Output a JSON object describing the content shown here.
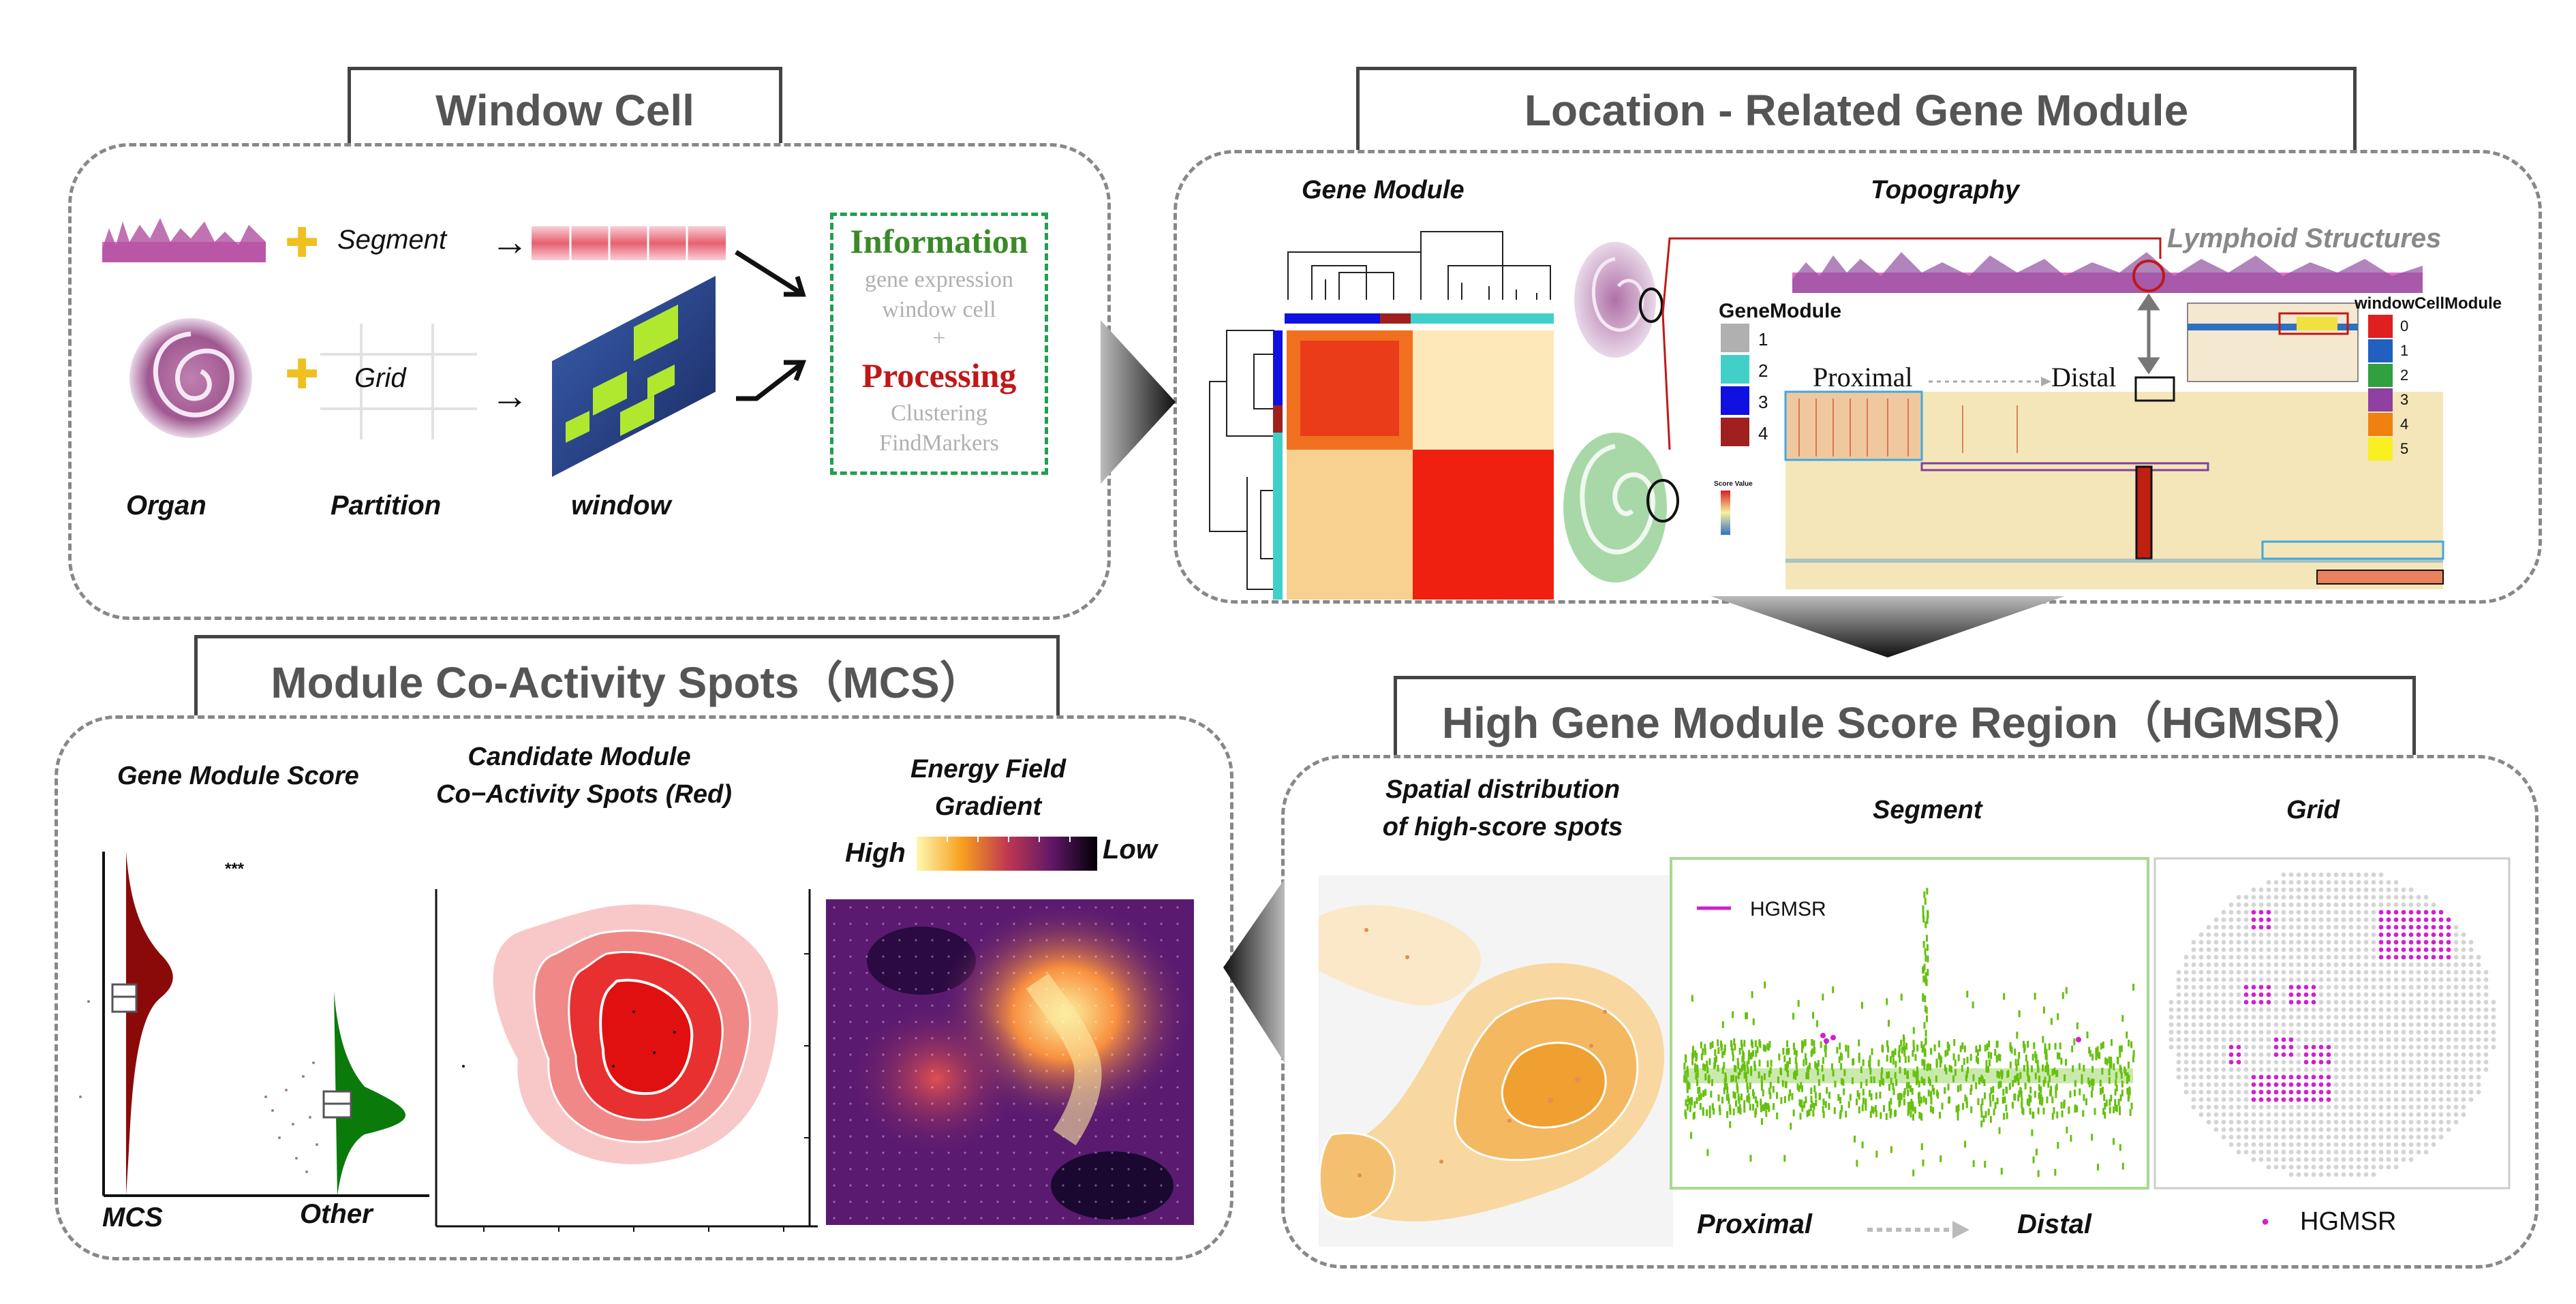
{
  "sections": {
    "window_cell": "Window Cell",
    "location_module": "Location - Related Gene Module",
    "mcs": "Module Co-Activity Spots（MCS）",
    "hgmsr": "High Gene Module Score Region（HGMSR）"
  },
  "window_cell": {
    "segment": "Segment",
    "grid": "Grid",
    "organ": "Organ",
    "partition": "Partition",
    "window": "window",
    "information": "Information",
    "gene_expression": "gene expression",
    "window_cell": "window cell",
    "plus": "+",
    "processing": "Processing",
    "clustering": "Clustering",
    "findmarkers": "FindMarkers"
  },
  "location_module": {
    "gene_module": "Gene Module",
    "topography": "Topography",
    "lymphoid": "Lymphoid Structures",
    "proximal": "Proximal",
    "distal": "Distal",
    "gene_module_legend_title": "GeneModule",
    "gene_module_legend": [
      "1",
      "2",
      "3",
      "4"
    ],
    "gene_module_colors": [
      "#b0b0b0",
      "#40d0c8",
      "#1010e0",
      "#a02020"
    ],
    "window_cell_module_title": "windowCellModule",
    "window_cell_module_legend": [
      "0",
      "1",
      "2",
      "3",
      "4",
      "5"
    ],
    "window_cell_module_colors": [
      "#e02020",
      "#2060c0",
      "#30a040",
      "#9040a0",
      "#f08010",
      "#f8f020"
    ],
    "score_value": "Score Value"
  },
  "mcs": {
    "gene_module_score": "Gene Module Score",
    "significance": "***",
    "mcs_label": "MCS",
    "other_label": "Other",
    "candidate_line1": "Candidate Module",
    "candidate_line2": "Co−Activity Spots (Red)",
    "energy_line1": "Energy Field",
    "energy_line2": "Gradient",
    "high": "High",
    "low": "Low"
  },
  "hgmsr": {
    "spatial_line1": "Spatial distribution",
    "spatial_line2": "of high-score spots",
    "segment": "Segment",
    "grid": "Grid",
    "legend_hgmsr": "HGMSR",
    "proximal": "Proximal",
    "distal": "Distal",
    "grid_legend": "HGMSR"
  },
  "colors": {
    "information_green": "#3a8a28",
    "processing_red": "#c01818",
    "dash_green": "#20a050",
    "hgmsr_magenta": "#d020d0",
    "segment_green": "#66c010",
    "accent_yellow": "#f0c020"
  }
}
